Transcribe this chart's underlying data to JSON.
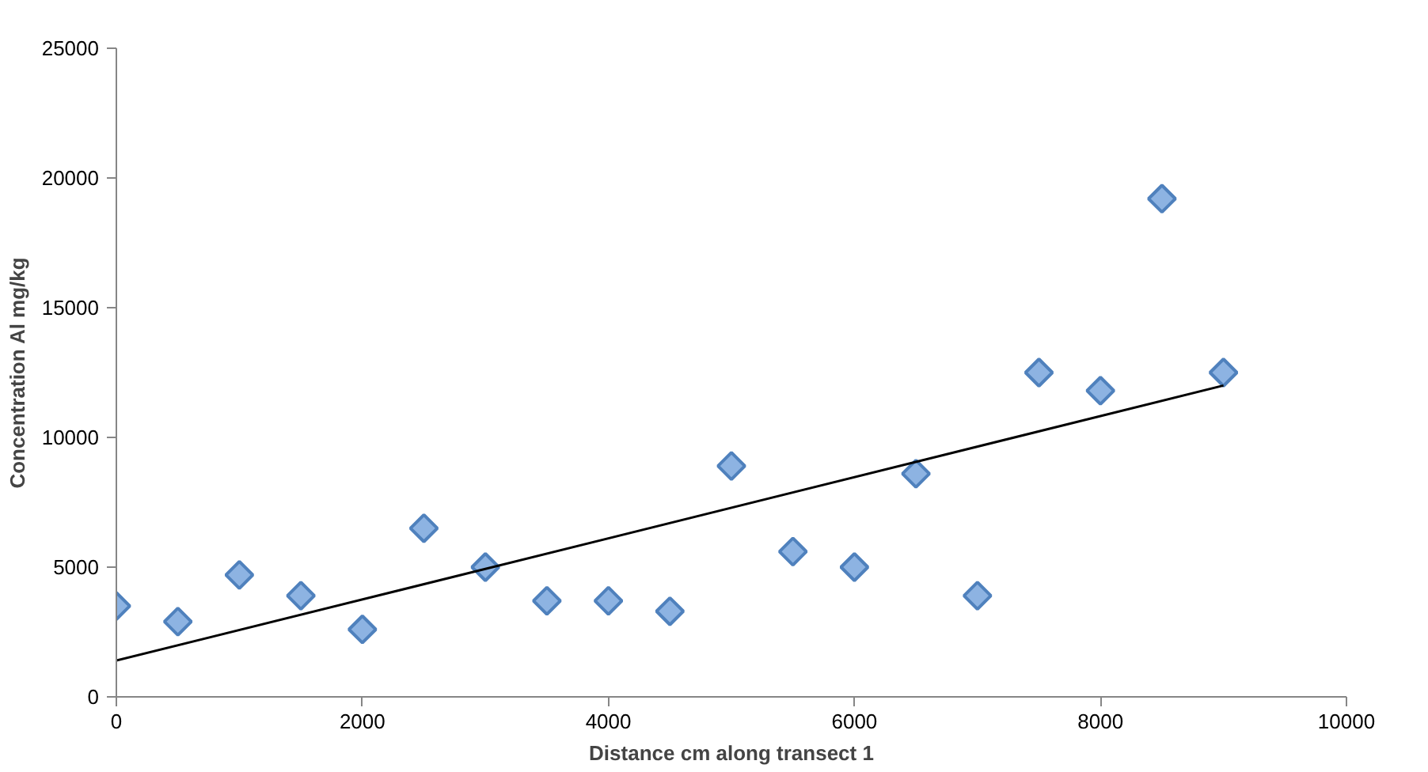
{
  "chart_data": {
    "type": "scatter",
    "xlabel": "Distance cm along transect 1",
    "ylabel": "Concentration Al mg/kg",
    "xlim": [
      0,
      10000
    ],
    "xticks": [
      0,
      2000,
      4000,
      6000,
      8000,
      10000
    ],
    "ylim": [
      0,
      25000
    ],
    "yticks": [
      0,
      5000,
      10000,
      15000,
      20000,
      25000
    ],
    "grid": false,
    "marker": "diamond",
    "series": [
      {
        "color": "#8db3e2",
        "x": [
          0,
          500,
          1000,
          1500,
          2000,
          2500,
          3000,
          3500,
          4000,
          4500,
          5000,
          5500,
          6000,
          6500,
          7000,
          7500,
          8000,
          8500,
          9000
        ],
        "values": [
          3500,
          2900,
          4700,
          3900,
          2600,
          6500,
          5000,
          3700,
          3700,
          3300,
          8900,
          5600,
          5000,
          8600,
          3900,
          12500,
          11800,
          19200,
          12500
        ]
      },
      {
        "type": "line",
        "color": "#000000",
        "x": [
          0,
          9000
        ],
        "values": [
          1400,
          12000
        ],
        "marker": "none",
        "line_style": "solid"
      }
    ]
  }
}
